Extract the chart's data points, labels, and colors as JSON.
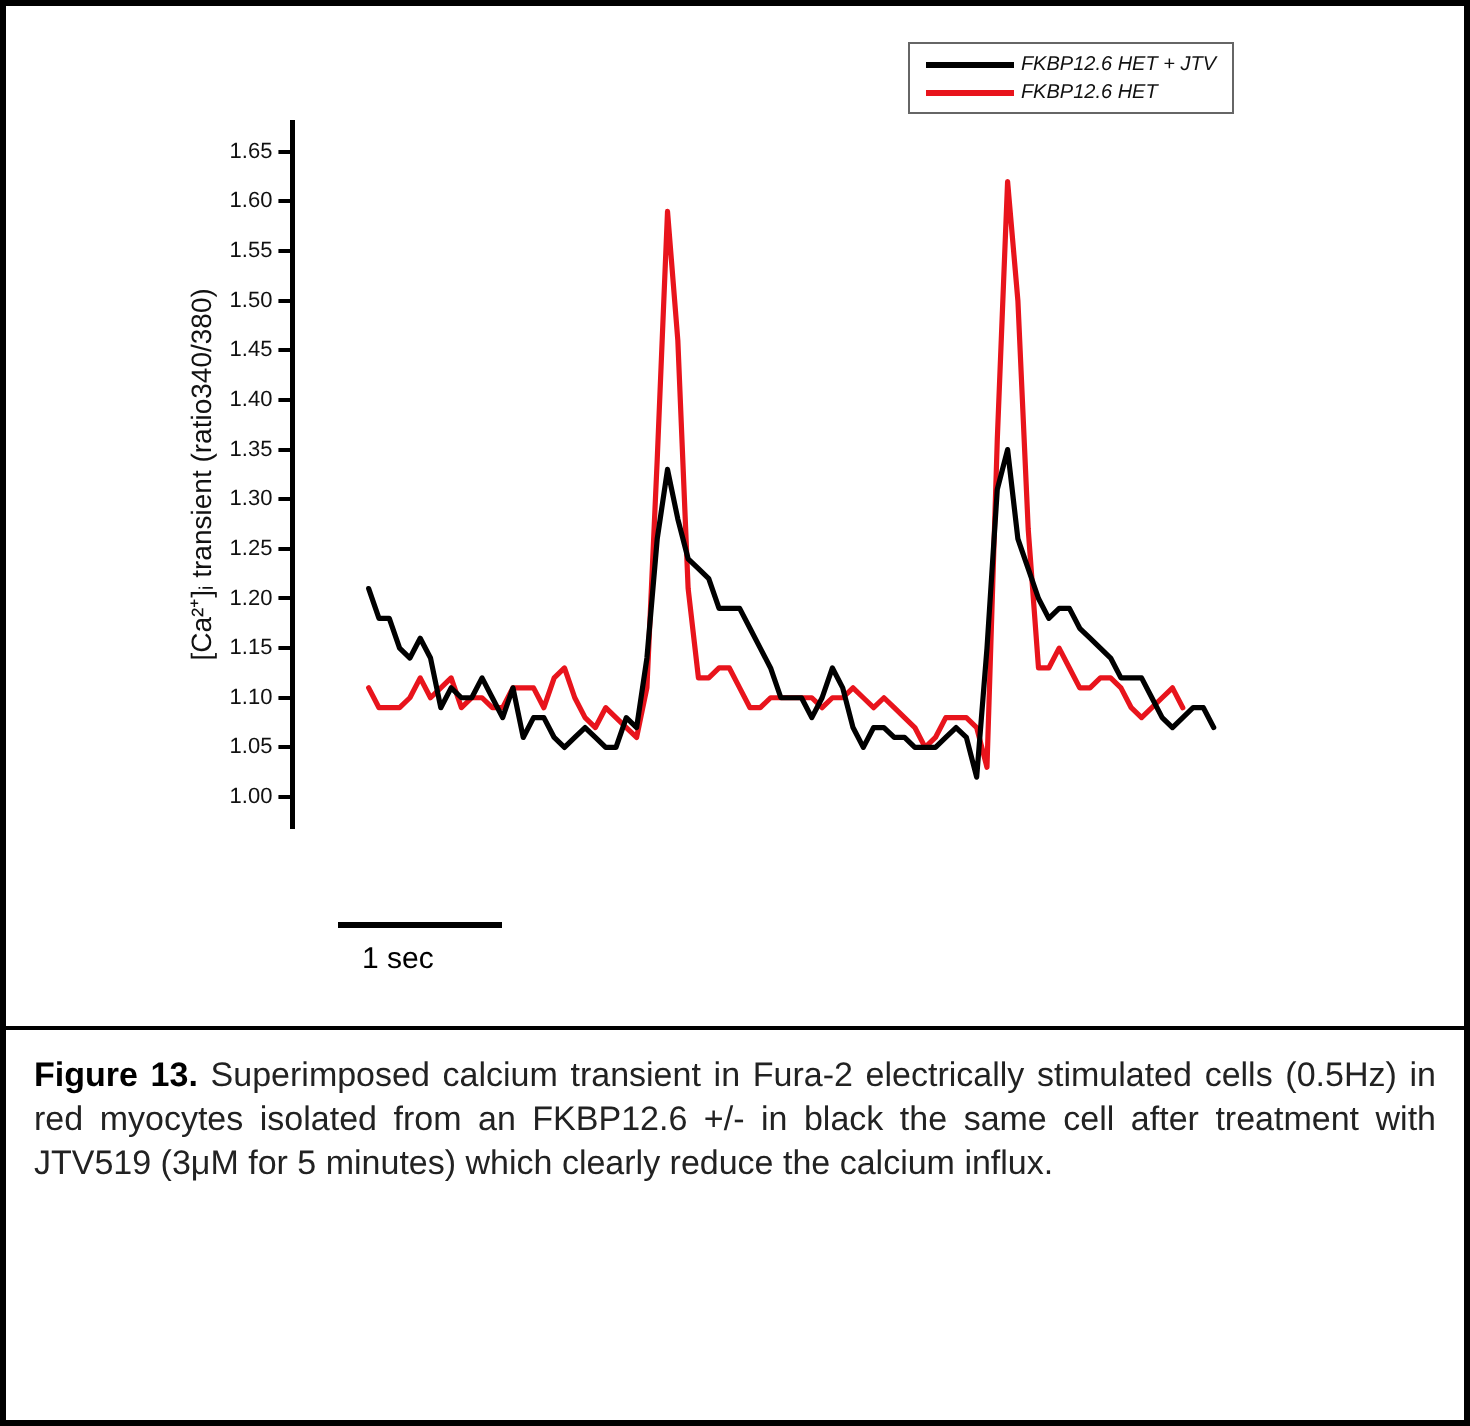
{
  "chart_data": {
    "type": "line",
    "title": "Figure 13.",
    "ylabel": "[Ca²⁺]ᵢ transient (ratio340/380)",
    "annotations": [
      "1 sec",
      "Superimposed calcium transient in Fura-2 electrically stimulated cells (0.5Hz) in red myocytes isolated from an FKBP12.6 +/- in black the same cell after treatment with JTV519 (3μM for 5 minutes) which clearly reduce the calcium influx."
    ],
    "categories": [
      null,
      null,
      null,
      null,
      null,
      null,
      null,
      null,
      null,
      null,
      null,
      null,
      null,
      null,
      null,
      null,
      null,
      null,
      null,
      null,
      null,
      null,
      null,
      null,
      null,
      null,
      null,
      null,
      null,
      null,
      null,
      null,
      null,
      null,
      null,
      null,
      null,
      null,
      null,
      null,
      null,
      null,
      null,
      null,
      null,
      null,
      null,
      null,
      null,
      null,
      null,
      null,
      null,
      null,
      null,
      null,
      null,
      null,
      null,
      null,
      null,
      null,
      null,
      null,
      null,
      null,
      null,
      null,
      null,
      null,
      null,
      null,
      null,
      null,
      null,
      null,
      null,
      null,
      null,
      null,
      null,
      null,
      null,
      null
    ],
    "series": [
      {
        "name": "FKBP12.6 HET + JTV",
        "color": "#000000",
        "values": [
          1.21,
          1.18,
          1.18,
          1.15,
          1.14,
          1.16,
          1.14,
          1.09,
          1.11,
          1.1,
          1.1,
          1.12,
          1.1,
          1.08,
          1.11,
          1.06,
          1.08,
          1.08,
          1.06,
          1.05,
          1.06,
          1.07,
          1.06,
          1.05,
          1.05,
          1.08,
          1.07,
          1.14,
          1.26,
          1.33,
          1.28,
          1.24,
          1.23,
          1.22,
          1.19,
          1.19,
          1.19,
          1.17,
          1.15,
          1.13,
          1.1,
          1.1,
          1.1,
          1.08,
          1.1,
          1.13,
          1.11,
          1.07,
          1.05,
          1.07,
          1.07,
          1.06,
          1.06,
          1.05,
          1.05,
          1.05,
          1.06,
          1.07,
          1.06,
          1.02,
          1.15,
          1.31,
          1.35,
          1.26,
          1.23,
          1.2,
          1.18,
          1.19,
          1.19,
          1.17,
          1.16,
          1.15,
          1.14,
          1.12,
          1.12,
          1.12,
          1.1,
          1.08,
          1.07,
          1.08,
          1.09,
          1.09,
          1.07,
          null
        ]
      },
      {
        "name": "FKBP12.6 HET",
        "color": "#e8141c",
        "values": [
          1.11,
          1.09,
          1.09,
          1.09,
          1.1,
          1.12,
          1.1,
          1.11,
          1.12,
          1.09,
          1.1,
          1.1,
          1.09,
          1.09,
          1.11,
          1.11,
          1.11,
          1.09,
          1.12,
          1.13,
          1.1,
          1.08,
          1.07,
          1.09,
          1.08,
          1.07,
          1.06,
          1.11,
          1.34,
          1.59,
          1.46,
          1.21,
          1.12,
          1.12,
          1.13,
          1.13,
          1.11,
          1.09,
          1.09,
          1.1,
          1.1,
          1.1,
          1.1,
          1.1,
          1.09,
          1.1,
          1.1,
          1.11,
          1.1,
          1.09,
          1.1,
          1.09,
          1.08,
          1.07,
          1.05,
          1.06,
          1.08,
          1.08,
          1.08,
          1.07,
          1.03,
          1.36,
          1.62,
          1.5,
          1.27,
          1.13,
          1.13,
          1.15,
          1.13,
          1.11,
          1.11,
          1.12,
          1.12,
          1.11,
          1.09,
          1.08,
          1.09,
          1.1,
          1.11,
          1.09,
          null,
          null,
          null,
          null
        ]
      }
    ],
    "ylim": [
      0.97,
      1.68
    ],
    "yticks": [
      {
        "value": 1,
        "label": "1.00"
      },
      1.05,
      {
        "value": 1.1,
        "label": "1.10"
      },
      1.15,
      {
        "value": 1.2,
        "label": "1.20"
      },
      1.25,
      {
        "value": 1.3,
        "label": "1.30"
      },
      1.35,
      {
        "value": 1.4,
        "label": "1.40"
      },
      1.45,
      {
        "value": 1.5,
        "label": "1.50"
      },
      1.55,
      {
        "value": 1.6,
        "label": "1.60"
      },
      1.65
    ],
    "legend": "top right",
    "marker": "none",
    "line_style": "solid",
    "tick_labels": "y"
  }
}
